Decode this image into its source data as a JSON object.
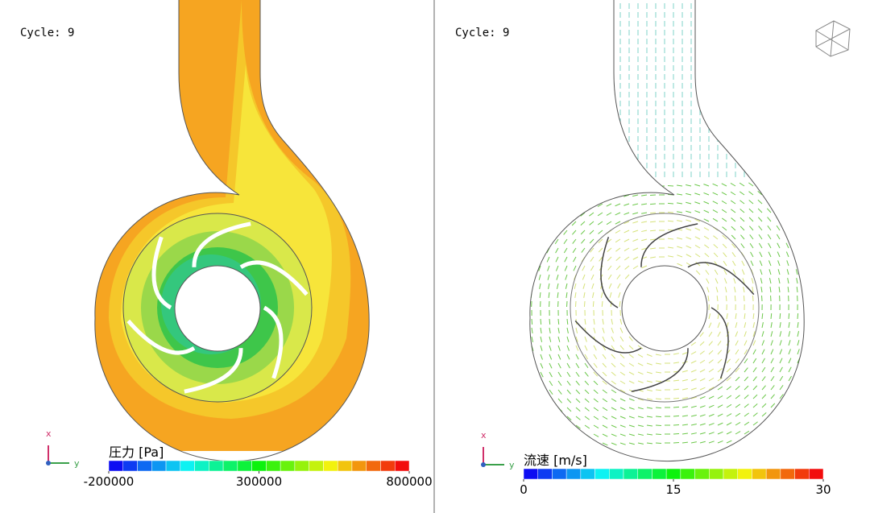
{
  "panels": [
    {
      "cycle_label": "Cycle: 9",
      "triad": {
        "x": "x",
        "y": "y"
      },
      "colorbar": {
        "title": "圧力 [Pa]",
        "ticks": [
          -200000,
          300000,
          800000
        ]
      }
    },
    {
      "cycle_label": "Cycle: 9",
      "triad": {
        "x": "x",
        "y": "y"
      },
      "colorbar": {
        "title": "流速 [m/s]",
        "ticks": [
          0,
          15,
          30
        ]
      }
    }
  ]
}
